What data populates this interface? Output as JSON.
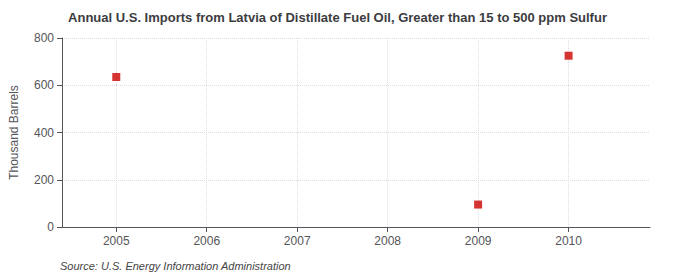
{
  "chart_data": {
    "type": "scatter",
    "title": "Annual U.S. Imports from Latvia of Distillate Fuel Oil, Greater than 15 to 500 ppm Sulfur",
    "ylabel": "Thousand Barrels",
    "annotations": [
      "Source: U.S. Energy Information Administration"
    ],
    "x": [
      2005,
      2009,
      2010
    ],
    "values": [
      635,
      95,
      725
    ],
    "color": "#cc0000",
    "marker": "square",
    "xlim": [
      2004.4,
      2010.9
    ],
    "xticks": [
      2005,
      2006,
      2007,
      2008,
      2009,
      2010
    ],
    "ylim": [
      0,
      800
    ],
    "yticks": [
      0,
      200,
      400,
      600,
      800
    ],
    "grid": true
  }
}
